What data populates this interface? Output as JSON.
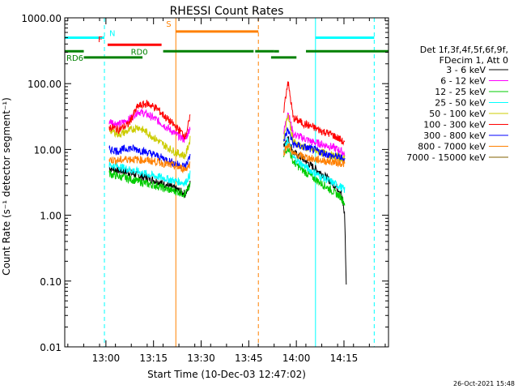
{
  "chart_data": {
    "type": "line",
    "title": "RHESSI Count Rates",
    "xlabel": "Start Time (10-Dec-03 12:47:02)",
    "ylabel": "Count Rate (s⁻¹ detector segment⁻¹)",
    "x_unit": "minutes after 12:47:02",
    "xlim": [
      0,
      102
    ],
    "ylim": [
      0.01,
      1000
    ],
    "y_scale": "log",
    "grid": false,
    "legend_position": "right",
    "x_ticks": [
      {
        "label": "13:00",
        "value": 12.97
      },
      {
        "label": "13:15",
        "value": 27.97
      },
      {
        "label": "13:30",
        "value": 42.97
      },
      {
        "label": "13:45",
        "value": 57.97
      },
      {
        "label": "14:00",
        "value": 72.97
      },
      {
        "label": "14:15",
        "value": 87.97
      }
    ],
    "y_ticks": [
      {
        "label": "1000.00",
        "value": 1000
      },
      {
        "label": "100.00",
        "value": 100
      },
      {
        "label": "10.00",
        "value": 10
      },
      {
        "label": "1.00",
        "value": 1
      },
      {
        "label": "0.10",
        "value": 0.1
      },
      {
        "label": "0.01",
        "value": 0.01
      }
    ],
    "legend_header": [
      "Det 1f,3f,4f,5f,6f,9f,",
      "FDecim 1, Att 0"
    ],
    "series": [
      {
        "name": "3 - 6 keV",
        "color": "#000000",
        "segments": [
          {
            "x": [
              14,
              17,
              20,
              23,
              26,
              29,
              32,
              35,
              38,
              39.5
            ],
            "y": [
              5.2,
              4.8,
              4.5,
              4.0,
              3.7,
              3.3,
              2.9,
              2.5,
              2.1,
              3.0
            ]
          },
          {
            "x": [
              69,
              70.3,
              72,
              75,
              78,
              81,
              84,
              87,
              88.2,
              88.7
            ],
            "y": [
              12,
              15,
              9,
              7.2,
              5.5,
              4.3,
              3.2,
              2.3,
              1.0,
              0.08
            ]
          }
        ]
      },
      {
        "name": "6 - 12 keV",
        "color": "#ff00ff",
        "segments": [
          {
            "x": [
              14,
              17,
              20,
              23,
              26,
              29,
              32,
              35,
              38,
              39.5
            ],
            "y": [
              27,
              24,
              28,
              38,
              34,
              28,
              22,
              17,
              14,
              22
            ]
          },
          {
            "x": [
              69,
              70.3,
              72,
              75,
              78,
              81,
              84,
              87,
              88.2
            ],
            "y": [
              18,
              38,
              17,
              15,
              13,
              12,
              11,
              9.5,
              8.5
            ]
          }
        ]
      },
      {
        "name": "12 - 25 keV",
        "color": "#00cc00",
        "segments": [
          {
            "x": [
              14,
              17,
              20,
              23,
              26,
              29,
              32,
              35,
              38,
              39.5
            ],
            "y": [
              4.3,
              3.9,
              3.6,
              3.3,
              3.0,
              2.8,
              2.5,
              2.3,
              2.1,
              2.8
            ]
          },
          {
            "x": [
              69,
              70.3,
              72,
              75,
              78,
              81,
              84,
              87,
              88.2
            ],
            "y": [
              8,
              11,
              6.5,
              4.8,
              3.8,
              3.0,
              2.4,
              1.9,
              1.5
            ]
          }
        ]
      },
      {
        "name": "25 - 50 keV",
        "color": "#00ffff",
        "segments": [
          {
            "x": [
              14,
              17,
              20,
              23,
              26,
              29,
              32,
              35,
              38,
              39.5
            ],
            "y": [
              5.8,
              5.5,
              5.0,
              4.6,
              4.2,
              3.9,
              3.6,
              3.3,
              3.1,
              4.2
            ]
          },
          {
            "x": [
              69,
              70.3,
              72,
              75,
              78,
              81,
              84,
              87,
              88.2
            ],
            "y": [
              9,
              14,
              7.5,
              5.8,
              4.6,
              3.8,
              3.2,
              2.7,
              2.4
            ]
          }
        ]
      },
      {
        "name": "50 - 100 keV",
        "color": "#cccc00",
        "segments": [
          {
            "x": [
              14,
              17,
              20,
              23,
              26,
              29,
              32,
              35,
              38,
              39.5
            ],
            "y": [
              20,
              17,
              19,
              22,
              18,
              14,
              11,
              9,
              8,
              14
            ]
          },
          {
            "x": [
              69,
              70.3,
              72,
              75,
              78,
              81,
              84,
              87,
              88.2
            ],
            "y": [
              15,
              35,
              13,
              11,
              10,
              9,
              8,
              7.5,
              7
            ]
          }
        ]
      },
      {
        "name": "100 - 300 keV",
        "color": "#ff0000",
        "segments": [
          {
            "x": [
              14,
              17,
              20,
              23,
              26,
              29,
              32,
              35,
              38,
              39.5
            ],
            "y": [
              22,
              20,
              24,
              45,
              50,
              42,
              30,
              22,
              16,
              30
            ]
          },
          {
            "x": [
              69,
              70.3,
              72,
              75,
              78,
              81,
              84,
              87,
              88.2
            ],
            "y": [
              40,
              110,
              30,
              25,
              22,
              19,
              17,
              14,
              12
            ]
          }
        ]
      },
      {
        "name": "300 - 800 keV",
        "color": "#0000ff",
        "segments": [
          {
            "x": [
              14,
              17,
              20,
              23,
              26,
              29,
              32,
              35,
              38,
              39.5
            ],
            "y": [
              10,
              9.5,
              10.5,
              10,
              9,
              8,
              7,
              6,
              5.5,
              8
            ]
          },
          {
            "x": [
              69,
              70.3,
              72,
              75,
              78,
              81,
              84,
              87,
              88.2
            ],
            "y": [
              14,
              20,
              12,
              11,
              10,
              9,
              8,
              7.5,
              7
            ]
          }
        ]
      },
      {
        "name": "800 - 7000 keV",
        "color": "#ff8000",
        "segments": [
          {
            "x": [
              14,
              17,
              20,
              23,
              26,
              29,
              32,
              35,
              38,
              39.5
            ],
            "y": [
              7,
              6.8,
              7.2,
              7,
              6.8,
              6.5,
              6,
              5.5,
              5,
              6
            ]
          },
          {
            "x": [
              69,
              70.3,
              72,
              75,
              78,
              81,
              84,
              87,
              88.2
            ],
            "y": [
              9,
              12,
              8.5,
              7.8,
              7.2,
              6.8,
              6.5,
              6.2,
              6
            ]
          }
        ]
      },
      {
        "name": "7000 - 15000 keV",
        "color": "#806000",
        "segments": []
      }
    ],
    "flag_bars": [
      {
        "label": "N",
        "color": "#00ffff",
        "y": 500,
        "segments": [
          [
            0,
            12.5
          ],
          [
            79,
            97.5
          ]
        ]
      },
      {
        "label": "F",
        "color": "#ff0000",
        "y": 390,
        "segments": [
          [
            13.5,
            30.5
          ]
        ]
      },
      {
        "label": "S",
        "color": "#ff8000",
        "y": 620,
        "segments": [
          [
            35,
            61
          ]
        ]
      },
      {
        "label": "RD0",
        "color": "#008000",
        "y": 310,
        "segments": [
          [
            0,
            6
          ],
          [
            31,
            59.5
          ],
          [
            60,
            66
          ],
          [
            66,
            67.5
          ],
          [
            76,
            102
          ]
        ]
      },
      {
        "label": "RD6",
        "color": "#008000",
        "y": 250,
        "segments": [
          [
            6,
            24.5
          ],
          [
            65,
            73
          ]
        ]
      }
    ],
    "vertical_lines": [
      {
        "color": "#00ffff",
        "style": "solid",
        "x": 0
      },
      {
        "color": "#00ffff",
        "style": "dashed",
        "x": 12.5
      },
      {
        "color": "#ff8000",
        "style": "solid",
        "x": 35
      },
      {
        "color": "#ff8000",
        "style": "dashed",
        "x": 61
      },
      {
        "color": "#00ffff",
        "style": "solid",
        "x": 79
      },
      {
        "color": "#00ffff",
        "style": "dashed",
        "x": 97.5
      }
    ],
    "footer_date": "26-Oct-2021 15:48"
  }
}
